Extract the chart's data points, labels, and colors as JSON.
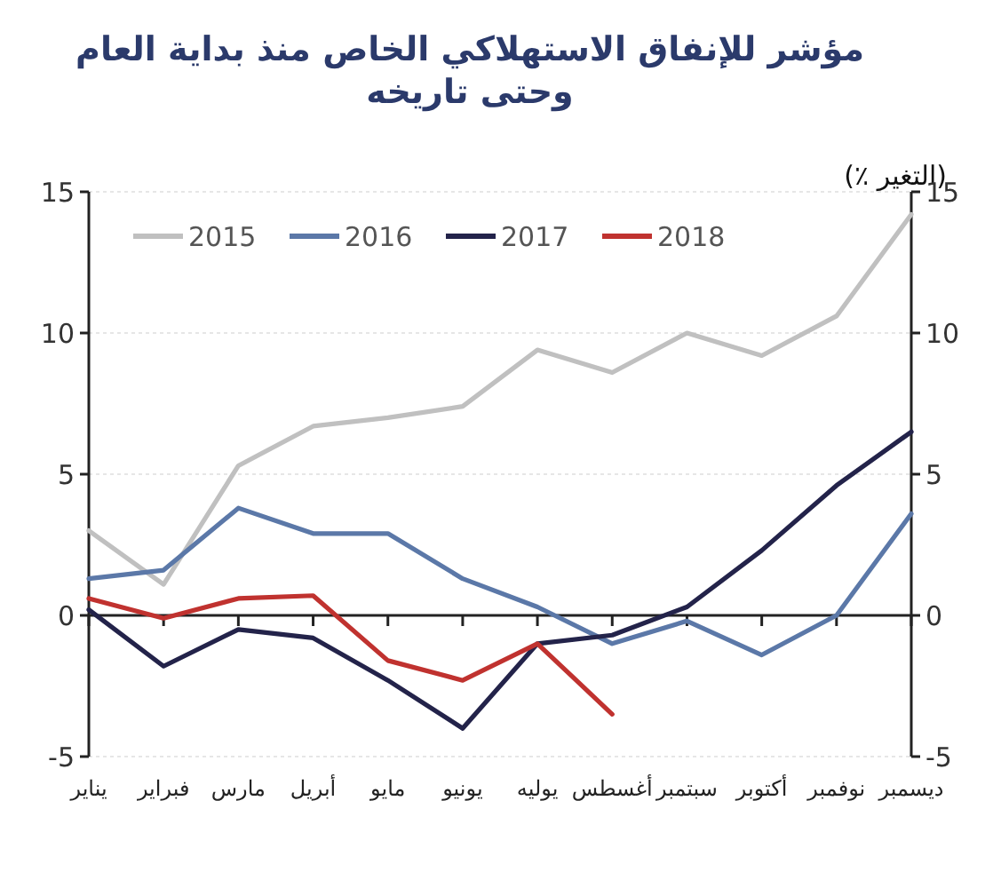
{
  "chart_data": {
    "type": "line",
    "title": "مؤشر للإنفاق الاستهلاكي الخاص منذ بداية العام وحتى تاريخه",
    "y2label": "(٪ التغير)",
    "categories": [
      "يناير",
      "فبراير",
      "مارس",
      "أبريل",
      "مايو",
      "يونيو",
      "يوليه",
      "أغسطس",
      "سبتمبر",
      "أكتوبر",
      "نوفمبر",
      "ديسمبر"
    ],
    "series": [
      {
        "name": "2015",
        "color": "#c0c0c0",
        "values": [
          3.0,
          1.1,
          5.3,
          6.7,
          7.0,
          7.4,
          9.4,
          8.6,
          10.0,
          9.2,
          10.6,
          14.2
        ]
      },
      {
        "name": "2016",
        "color": "#5b78a8",
        "values": [
          1.3,
          1.6,
          3.8,
          2.9,
          2.9,
          1.3,
          0.3,
          -1.0,
          -0.2,
          -1.4,
          0.0,
          3.6
        ]
      },
      {
        "name": "2017",
        "color": "#23234a",
        "values": [
          0.2,
          -1.8,
          -0.5,
          -0.8,
          -2.3,
          -4.0,
          -1.0,
          -0.7,
          0.3,
          2.3,
          4.6,
          6.5
        ]
      },
      {
        "name": "2018",
        "color": "#c0322f",
        "values": [
          0.6,
          -0.1,
          0.6,
          0.7,
          -1.6,
          -2.3,
          -1.0,
          -3.5,
          null,
          null,
          null,
          null
        ]
      }
    ],
    "ylim": [
      -5,
      15
    ],
    "yticks": [
      -5,
      0,
      5,
      10,
      15
    ],
    "y2lim": [
      -5,
      15
    ],
    "y2ticks": [
      -5,
      0,
      5,
      10,
      15
    ],
    "grid": "y",
    "legend": "top left",
    "marker": "none",
    "line_style": "solid"
  }
}
